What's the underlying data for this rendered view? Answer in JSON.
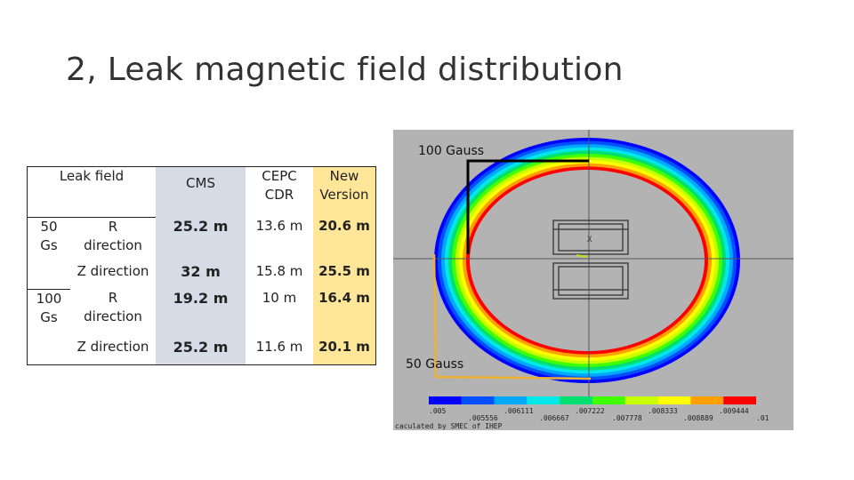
{
  "title": "2, Leak magnetic field distribution",
  "table": {
    "header": {
      "leak_field": "Leak field",
      "cms": "CMS",
      "cepc": "CEPC\nCDR",
      "new": "New\nVersion"
    },
    "rows": [
      {
        "group": "50\nGs",
        "dir": "R\ndirection",
        "cms": "25.2 m",
        "cepc": "13.6 m",
        "new": "20.6 m"
      },
      {
        "group": "",
        "dir": "Z direction",
        "cms": "32 m",
        "cepc": "15.8 m",
        "new": "25.5 m"
      },
      {
        "group": "100\nGs",
        "dir": "R\ndirection",
        "cms": "19.2 m",
        "cepc": "10 m",
        "new": "16.4 m"
      },
      {
        "group": "",
        "dir": "Z direction",
        "cms": "25.2 m",
        "cepc": "11.6 m",
        "new": "20.1 m"
      }
    ]
  },
  "figure": {
    "label_100": "100 Gauss",
    "label_50": "50 Gauss",
    "scale_top": [
      ".005",
      ".006111",
      ".007222",
      ".008333",
      ".009444"
    ],
    "scale_bottom": [
      ".005556",
      ".006667",
      ".007778",
      ".008889",
      ".01"
    ],
    "credit": "caculated by SMEC of IHEP",
    "colors": [
      "#0000ff",
      "#0050ff",
      "#00a8ff",
      "#00e8e8",
      "#00e070",
      "#40ff00",
      "#c8ff00",
      "#ffff00",
      "#ffa000",
      "#ff0000"
    ]
  }
}
